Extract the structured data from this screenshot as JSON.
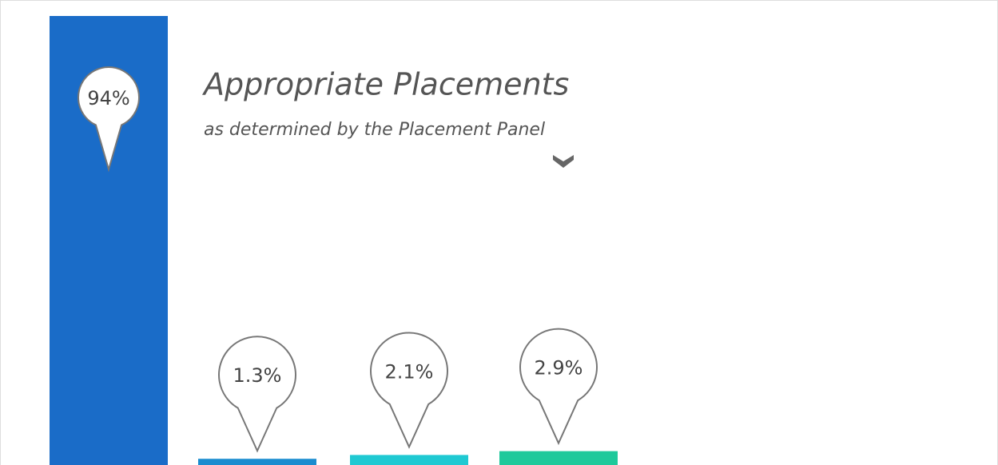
{
  "chart_data": {
    "type": "bar",
    "title": "Appropriate Placements",
    "subtitle": "as determined by the Placement Panel",
    "values": [
      94,
      1.3,
      2.1,
      2.9
    ],
    "value_labels": [
      "94%",
      "1.3%",
      "2.1%",
      "2.9%"
    ],
    "colors": [
      "#1a6cc8",
      "#1a8ccf",
      "#1fc9d2",
      "#1ec99b"
    ]
  }
}
